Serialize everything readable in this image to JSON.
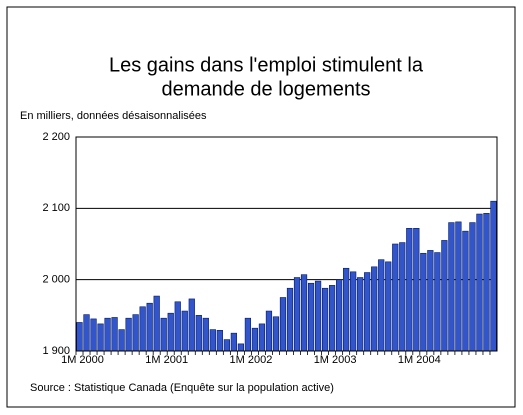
{
  "chart_data": {
    "type": "bar",
    "title": [
      "Les gains dans l'emploi stimulent la",
      "demande de logements"
    ],
    "subtitle": "En milliers, données désaisonnalisées",
    "source": "Source : Statistique Canada (Enquête sur la population active)",
    "categories": [
      "1M 2000",
      null,
      null,
      null,
      null,
      null,
      null,
      null,
      null,
      null,
      null,
      null,
      "1M 2001",
      null,
      null,
      null,
      null,
      null,
      null,
      null,
      null,
      null,
      null,
      null,
      "1M 2002",
      null,
      null,
      null,
      null,
      null,
      null,
      null,
      null,
      null,
      null,
      null,
      "1M 2003",
      null,
      null,
      null,
      null,
      null,
      null,
      null,
      null,
      null,
      null,
      null,
      "1M 2004",
      null,
      null,
      null,
      null,
      null,
      null,
      null,
      null,
      null,
      null,
      null
    ],
    "values": [
      1940,
      1951,
      1945,
      1938,
      1946,
      1947,
      1930,
      1946,
      1951,
      1962,
      1967,
      1977,
      1946,
      1953,
      1969,
      1956,
      1973,
      1950,
      1946,
      1930,
      1929,
      1916,
      1925,
      1910,
      1946,
      1932,
      1938,
      1956,
      1948,
      1975,
      1988,
      2003,
      2007,
      1995,
      1998,
      1988,
      1992,
      2000,
      2016,
      2011,
      2003,
      2010,
      2018,
      2028,
      2025,
      2050,
      2052,
      2072,
      2072,
      2037,
      2041,
      2038,
      2055,
      2080,
      2081,
      2068,
      2080,
      2092,
      2093,
      2110
    ],
    "color": "#3355cc",
    "ylim": [
      1900,
      2200
    ],
    "yticks": [
      {
        "value": 1900,
        "label": "1 900"
      },
      {
        "value": 2000,
        "label": "2 000"
      },
      {
        "value": 2100,
        "label": "2 100"
      },
      {
        "value": 2200,
        "label": "2 200"
      }
    ],
    "grid": true
  }
}
